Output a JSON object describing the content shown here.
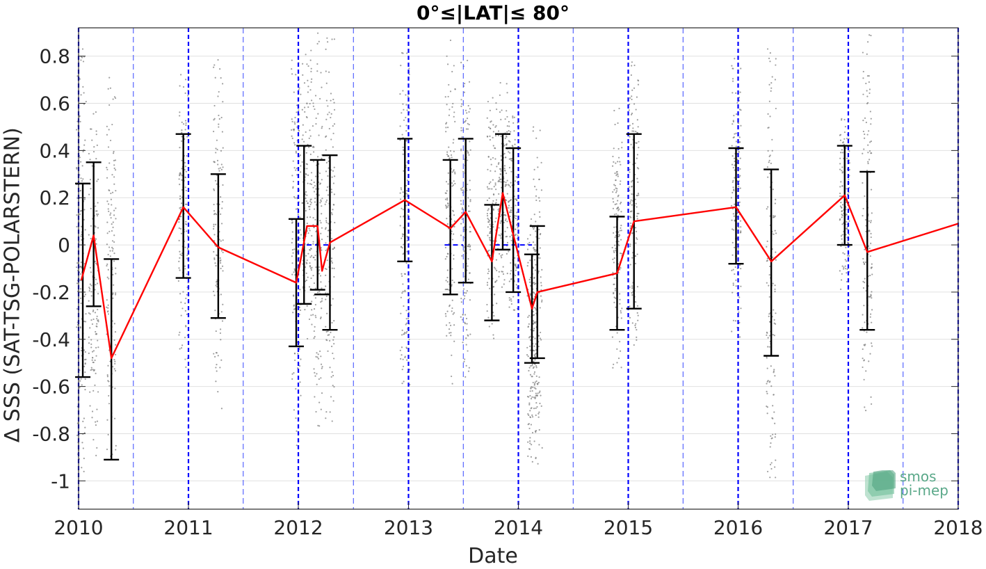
{
  "chart_data": {
    "type": "scatter",
    "title": "0°≤|LAT|≤ 80°",
    "xlabel": "Date",
    "ylabel": "∆ SSS (SAT-TSG-POLARSTERN)",
    "xlim": [
      "2010-01-01",
      "2018-01-01"
    ],
    "ylim": [
      -1.12,
      0.92
    ],
    "xticks": [
      "2010",
      "2011",
      "2012",
      "2013",
      "2014",
      "2015",
      "2016",
      "2017",
      "2018"
    ],
    "yticks": [
      "0.8",
      "0.6",
      "0.4",
      "0.2",
      "0",
      "-0.2",
      "-0.4",
      "-0.6",
      "-0.8",
      "-1"
    ],
    "grid": true,
    "colors": {
      "line": "#ff0000",
      "errorbar": "#000000",
      "points": "#7f7f7f",
      "year_lines": "#0000ff"
    },
    "series": [
      {
        "type": "line",
        "points": [
          [
            "2010-01-10",
            -0.15
          ],
          [
            "2010-02-20",
            0.04
          ],
          [
            "2010-04-20",
            -0.48
          ],
          [
            "2010-12-15",
            0.16
          ],
          [
            "2011-04-10",
            -0.01
          ],
          [
            "2011-12-25",
            -0.16
          ],
          [
            "2012-01-30",
            0.08
          ],
          [
            "2012-03-05",
            0.08
          ],
          [
            "2012-03-20",
            -0.11
          ],
          [
            "2012-04-15",
            0.01
          ],
          [
            "2012-12-20",
            0.19
          ],
          [
            "2013-05-20",
            0.07
          ],
          [
            "2013-07-10",
            0.14
          ],
          [
            "2013-10-05",
            -0.07
          ],
          [
            "2013-11-10",
            0.22
          ],
          [
            "2014-02-15",
            -0.27
          ],
          [
            "2014-03-05",
            -0.2
          ],
          [
            "2014-11-25",
            -0.12
          ],
          [
            "2015-01-20",
            0.1
          ],
          [
            "2015-12-25",
            0.16
          ],
          [
            "2016-04-20",
            -0.07
          ],
          [
            "2016-12-20",
            0.21
          ],
          [
            "2017-03-05",
            -0.03
          ],
          [
            "2018-01-01",
            0.09
          ]
        ]
      },
      {
        "type": "errorbar",
        "bars": [
          [
            "2010-01-15",
            -0.56,
            0.26
          ],
          [
            "2010-02-20",
            -0.26,
            0.35
          ],
          [
            "2010-04-20",
            -0.91,
            -0.06
          ],
          [
            "2010-12-15",
            -0.14,
            0.47
          ],
          [
            "2011-04-10",
            -0.31,
            0.3
          ],
          [
            "2011-12-25",
            -0.43,
            0.11
          ],
          [
            "2012-01-20",
            -0.25,
            0.42
          ],
          [
            "2012-03-05",
            -0.19,
            0.36
          ],
          [
            "2012-03-20",
            -0.21,
            -0.21
          ],
          [
            "2012-04-15",
            -0.36,
            0.38
          ],
          [
            "2012-12-20",
            -0.07,
            0.45
          ],
          [
            "2013-05-20",
            -0.21,
            0.36
          ],
          [
            "2013-07-10",
            -0.16,
            0.45
          ],
          [
            "2013-10-05",
            -0.32,
            0.17
          ],
          [
            "2013-11-10",
            -0.02,
            0.47
          ],
          [
            "2013-12-15",
            -0.2,
            0.41
          ],
          [
            "2014-02-15",
            -0.5,
            -0.04
          ],
          [
            "2014-03-05",
            -0.48,
            0.08
          ],
          [
            "2014-11-25",
            -0.36,
            0.12
          ],
          [
            "2015-01-20",
            -0.27,
            0.47
          ],
          [
            "2015-12-25",
            -0.08,
            0.41
          ],
          [
            "2016-04-20",
            -0.47,
            0.32
          ],
          [
            "2016-12-20",
            0.0,
            0.42
          ],
          [
            "2017-03-05",
            -0.36,
            0.31
          ]
        ]
      },
      {
        "type": "points",
        "description": "gray individual match-up clusters",
        "clusters": [
          [
            "2010-01-10",
            -1.05,
            0.85
          ],
          [
            "2010-02-20",
            -0.9,
            0.6
          ],
          [
            "2010-04-20",
            -0.93,
            0.73
          ],
          [
            "2010-12-15",
            -0.52,
            0.73
          ],
          [
            "2011-04-10",
            -0.7,
            0.8
          ],
          [
            "2011-12-25",
            -0.85,
            0.85
          ],
          [
            "2012-01-30",
            -0.5,
            0.85
          ],
          [
            "2012-03-05",
            -0.8,
            0.9
          ],
          [
            "2012-04-15",
            -0.82,
            0.9
          ],
          [
            "2012-12-20",
            -0.62,
            0.85
          ],
          [
            "2013-05-20",
            -0.6,
            0.88
          ],
          [
            "2013-07-10",
            -0.58,
            0.82
          ],
          [
            "2013-10-05",
            -0.4,
            0.65
          ],
          [
            "2013-11-10",
            -0.2,
            0.7
          ],
          [
            "2013-12-15",
            -0.3,
            0.55
          ],
          [
            "2014-02-15",
            -0.95,
            0.15
          ],
          [
            "2014-03-05",
            -0.95,
            0.5
          ],
          [
            "2014-11-25",
            -0.55,
            0.6
          ],
          [
            "2015-01-20",
            -0.45,
            0.8
          ],
          [
            "2015-12-25",
            -0.4,
            0.85
          ],
          [
            "2016-04-20",
            -1.1,
            0.88
          ],
          [
            "2016-12-20",
            -0.2,
            0.55
          ],
          [
            "2017-03-05",
            -0.72,
            0.9
          ]
        ]
      },
      {
        "type": "zero_segments",
        "segments": [
          [
            "2012-01-01",
            "2012-04-10"
          ],
          [
            "2013-05-01",
            "2013-07-01"
          ],
          [
            "2013-10-15",
            "2014-02-15"
          ]
        ]
      }
    ],
    "annotations": [
      "year boundaries (thick dashed blue)",
      "mid-year markers (thin dashed blue)"
    ]
  },
  "logo": {
    "line1": "smos",
    "line2": "pi-mep"
  }
}
